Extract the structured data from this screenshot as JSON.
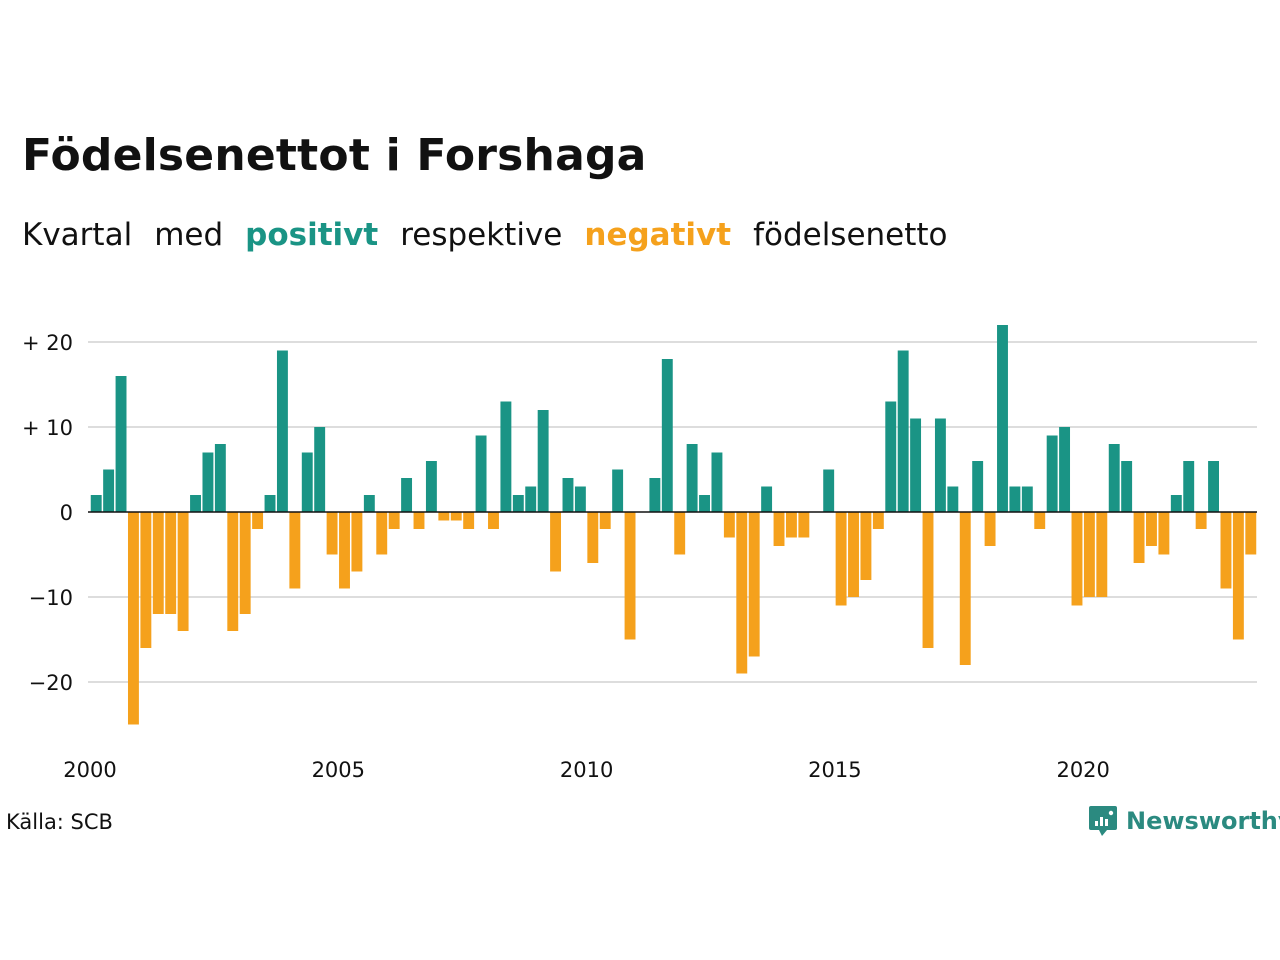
{
  "title": "Födelsenettot i Forshaga",
  "subtitle": {
    "part1": "Kvartal",
    "part2": "med",
    "positive_word": "positivt",
    "part3": "respektive",
    "negative_word": "negativt",
    "part4": "födelsenetto"
  },
  "source": "Källa: SCB",
  "brand": {
    "name": "Newsworthy",
    "icon": "newsworthy-logo-icon"
  },
  "colors": {
    "positive": "#1a9485",
    "negative": "#f5a11c",
    "grid": "#dddddd",
    "text": "#111111",
    "brand": "#2b8a80"
  },
  "chart_data": {
    "type": "bar",
    "period": "quarterly",
    "start": "2000 Q1",
    "ylim": [
      -27,
      23
    ],
    "yticks": [
      20,
      10,
      0,
      -10,
      -20
    ],
    "ytick_labels": [
      "+ 20",
      "+ 10",
      "0",
      "−10",
      "−20"
    ],
    "xticks": [
      "2000",
      "2005",
      "2010",
      "2015",
      "2020"
    ],
    "grid": true,
    "values": [
      2,
      5,
      16,
      -25,
      -16,
      -12,
      -12,
      -14,
      2,
      7,
      8,
      -14,
      -12,
      -2,
      2,
      19,
      -9,
      7,
      10,
      -5,
      -9,
      -7,
      2,
      -5,
      -2,
      4,
      -2,
      6,
      -1,
      -1,
      -2,
      9,
      -2,
      13,
      2,
      3,
      12,
      -7,
      4,
      3,
      -6,
      -2,
      5,
      -15,
      0,
      4,
      18,
      -5,
      8,
      2,
      7,
      -3,
      -19,
      -17,
      3,
      -4,
      -3,
      -3,
      0,
      5,
      -11,
      -10,
      -8,
      -2,
      13,
      19,
      11,
      -16,
      11,
      3,
      -18,
      6,
      -4,
      22,
      3,
      3,
      -2,
      9,
      10,
      -11,
      -10,
      -10,
      8,
      6,
      -6,
      -4,
      -5,
      2,
      6,
      -2,
      6,
      -9,
      -15,
      -5
    ]
  }
}
